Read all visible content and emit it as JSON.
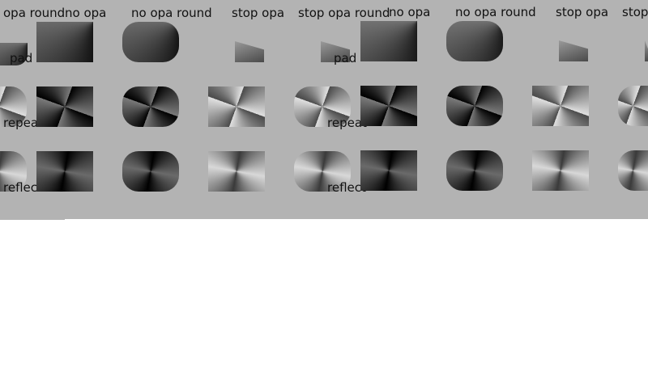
{
  "columns": {
    "c0": "opa round",
    "c1": "no opa",
    "c2": "no opa round",
    "c3": "stop opa",
    "c4": "stop opa round",
    "c5": "no opa",
    "c6": "no opa round",
    "c7": "stop opa",
    "c8": "stop opa"
  },
  "rows": {
    "pad": "pad",
    "repeat": "repeat",
    "reflect": "reflect"
  },
  "colors": {
    "panel_bg": "#b3b3b3",
    "page_bg": "#ffffff"
  }
}
